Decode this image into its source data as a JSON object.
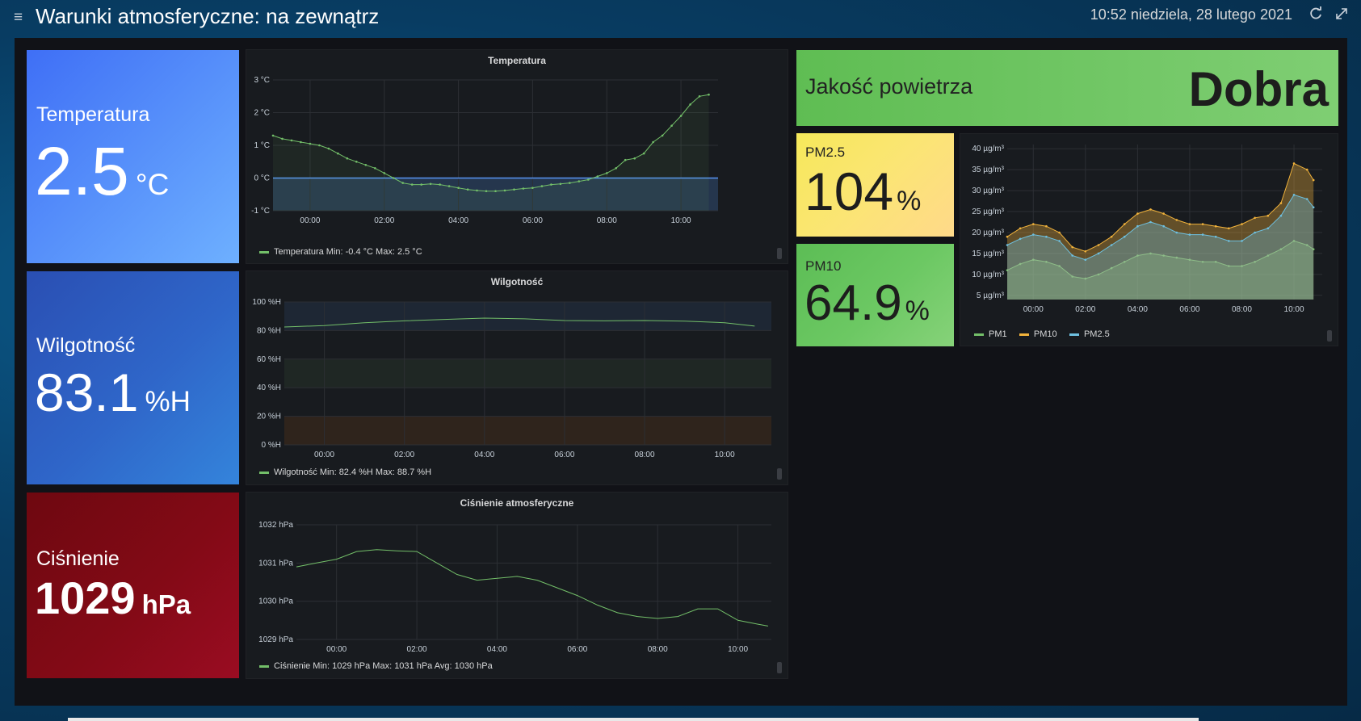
{
  "header": {
    "title": "Warunki atmosferyczne: na zewnątrz",
    "datetime": "10:52 niedziela, 28 lutego 2021",
    "menu_icon": "hamburger-menu-icon",
    "refresh_icon": "refresh-icon",
    "fullscreen_icon": "fullscreen-icon"
  },
  "colors": {
    "temperature_stat": "#4a7fff",
    "humidity_stat": "#2b5fc7",
    "pressure_stat": "#8b0a18",
    "series_green": "#73bf69",
    "series_yellow": "#f2b33b",
    "series_blue": "#6ec0e0",
    "air_quality_good": "#73bf69"
  },
  "stats": {
    "temperature": {
      "label": "Temperatura",
      "value": "2.5",
      "unit": "°C"
    },
    "humidity": {
      "label": "Wilgotność",
      "value": "83.1",
      "unit": "%H"
    },
    "pressure": {
      "label": "Ciśnienie",
      "value": "1029",
      "unit": "hPa"
    }
  },
  "charts": {
    "temperature": {
      "title": "Temperatura",
      "y_ticks": [
        "3 °C",
        "2 °C",
        "1 °C",
        "0 °C",
        "-1 °C"
      ],
      "x_ticks": [
        "00:00",
        "02:00",
        "04:00",
        "06:00",
        "08:00",
        "10:00"
      ],
      "legend": "Temperatura  Min: -0.4 °C  Max: 2.5 °C"
    },
    "humidity": {
      "title": "Wilgotność",
      "y_ticks": [
        "100 %H",
        "80 %H",
        "60 %H",
        "40 %H",
        "20 %H",
        "0 %H"
      ],
      "x_ticks": [
        "00:00",
        "02:00",
        "04:00",
        "06:00",
        "08:00",
        "10:00"
      ],
      "legend": "Wilgotność  Min: 82.4 %H  Max: 88.7 %H"
    },
    "pressure": {
      "title": "Ciśnienie atmosferyczne",
      "y_ticks": [
        "1032 hPa",
        "1031 hPa",
        "1030 hPa",
        "1029 hPa"
      ],
      "x_ticks": [
        "00:00",
        "02:00",
        "04:00",
        "06:00",
        "08:00",
        "10:00"
      ],
      "legend": "Ciśnienie  Min: 1029 hPa  Max: 1031 hPa  Avg: 1030 hPa"
    },
    "pm": {
      "y_ticks": [
        "40 µg/m³",
        "35 µg/m³",
        "30 µg/m³",
        "25 µg/m³",
        "20 µg/m³",
        "15 µg/m³",
        "10 µg/m³",
        "5 µg/m³"
      ],
      "x_ticks": [
        "00:00",
        "02:00",
        "04:00",
        "06:00",
        "08:00",
        "10:00"
      ],
      "legend": [
        "PM1",
        "PM10",
        "PM2.5"
      ]
    }
  },
  "air_quality": {
    "label": "Jakość powietrza",
    "value": "Dobra"
  },
  "pm25": {
    "label": "PM2.5",
    "value": "104",
    "unit": "%"
  },
  "pm10": {
    "label": "PM10",
    "value": "64.9",
    "unit": "%"
  },
  "chart_data": [
    {
      "type": "area",
      "title": "Temperatura",
      "ylim": [
        -1,
        3
      ],
      "x": [
        "23:00",
        "23:15",
        "23:30",
        "23:45",
        "00:00",
        "00:15",
        "00:30",
        "00:45",
        "01:00",
        "01:15",
        "01:30",
        "01:45",
        "02:00",
        "02:15",
        "02:30",
        "02:45",
        "03:00",
        "03:15",
        "03:30",
        "03:45",
        "04:00",
        "04:15",
        "04:30",
        "04:45",
        "05:00",
        "05:15",
        "05:30",
        "05:45",
        "06:00",
        "06:15",
        "06:30",
        "06:45",
        "07:00",
        "07:15",
        "07:30",
        "07:45",
        "08:00",
        "08:15",
        "08:30",
        "08:45",
        "09:00",
        "09:15",
        "09:30",
        "09:45",
        "10:00",
        "10:15",
        "10:30",
        "10:45"
      ],
      "series": [
        {
          "name": "Temperatura",
          "values": [
            1.3,
            1.2,
            1.15,
            1.1,
            1.05,
            1.0,
            0.9,
            0.75,
            0.6,
            0.5,
            0.4,
            0.3,
            0.15,
            0.0,
            -0.15,
            -0.2,
            -0.2,
            -0.18,
            -0.2,
            -0.25,
            -0.3,
            -0.35,
            -0.38,
            -0.4,
            -0.4,
            -0.38,
            -0.35,
            -0.32,
            -0.3,
            -0.25,
            -0.2,
            -0.18,
            -0.15,
            -0.1,
            -0.05,
            0.05,
            0.15,
            0.3,
            0.55,
            0.6,
            0.75,
            1.1,
            1.3,
            1.6,
            1.9,
            2.25,
            2.5,
            2.55
          ]
        }
      ]
    },
    {
      "type": "line",
      "title": "Wilgotność",
      "ylim": [
        0,
        100
      ],
      "x": [
        "23:00",
        "00:00",
        "01:00",
        "02:00",
        "03:00",
        "04:00",
        "05:00",
        "06:00",
        "07:00",
        "08:00",
        "09:00",
        "10:00",
        "10:45"
      ],
      "series": [
        {
          "name": "Wilgotność",
          "values": [
            82.5,
            83.5,
            85.5,
            86.8,
            87.8,
            88.7,
            88.2,
            87.0,
            86.8,
            87.0,
            86.6,
            85.5,
            83.1
          ]
        }
      ]
    },
    {
      "type": "line",
      "title": "Ciśnienie atmosferyczne",
      "ylim": [
        1029,
        1032
      ],
      "x": [
        "23:00",
        "23:30",
        "00:00",
        "00:30",
        "01:00",
        "01:30",
        "02:00",
        "02:30",
        "03:00",
        "03:30",
        "04:00",
        "04:30",
        "05:00",
        "05:30",
        "06:00",
        "06:30",
        "07:00",
        "07:30",
        "08:00",
        "08:30",
        "09:00",
        "09:30",
        "10:00",
        "10:30",
        "10:45"
      ],
      "series": [
        {
          "name": "Ciśnienie",
          "values": [
            1030.9,
            1031.0,
            1031.1,
            1031.3,
            1031.35,
            1031.32,
            1031.3,
            1031.0,
            1030.7,
            1030.55,
            1030.6,
            1030.65,
            1030.55,
            1030.35,
            1030.15,
            1029.9,
            1029.7,
            1029.6,
            1029.55,
            1029.6,
            1029.8,
            1029.8,
            1029.5,
            1029.4,
            1029.35
          ]
        }
      ]
    },
    {
      "type": "area",
      "ylim": [
        4,
        41
      ],
      "x": [
        "23:00",
        "23:30",
        "00:00",
        "00:30",
        "01:00",
        "01:30",
        "02:00",
        "02:30",
        "03:00",
        "03:30",
        "04:00",
        "04:30",
        "05:00",
        "05:30",
        "06:00",
        "06:30",
        "07:00",
        "07:30",
        "08:00",
        "08:30",
        "09:00",
        "09:30",
        "10:00",
        "10:30",
        "10:45"
      ],
      "series": [
        {
          "name": "PM1",
          "values": [
            11,
            12.5,
            13.5,
            13,
            12,
            9.5,
            9,
            10,
            11.5,
            13,
            14.5,
            15,
            14.5,
            14,
            13.5,
            13,
            13,
            12,
            12,
            13,
            14.5,
            16,
            18,
            17,
            16
          ]
        },
        {
          "name": "PM10",
          "values": [
            19,
            21,
            22,
            21.5,
            20,
            16.5,
            15.5,
            17,
            19,
            22,
            24.5,
            25.5,
            24.5,
            23,
            22,
            22,
            21.5,
            21,
            22,
            23.5,
            24,
            27,
            36.5,
            35,
            32.5
          ]
        },
        {
          "name": "PM2.5",
          "values": [
            17,
            18.5,
            19.5,
            19,
            18,
            14.5,
            13.5,
            15,
            17,
            19,
            21.5,
            22.5,
            21.5,
            20,
            19.5,
            19.5,
            19,
            18,
            18,
            20,
            21,
            24,
            29,
            28,
            26
          ]
        }
      ]
    }
  ]
}
